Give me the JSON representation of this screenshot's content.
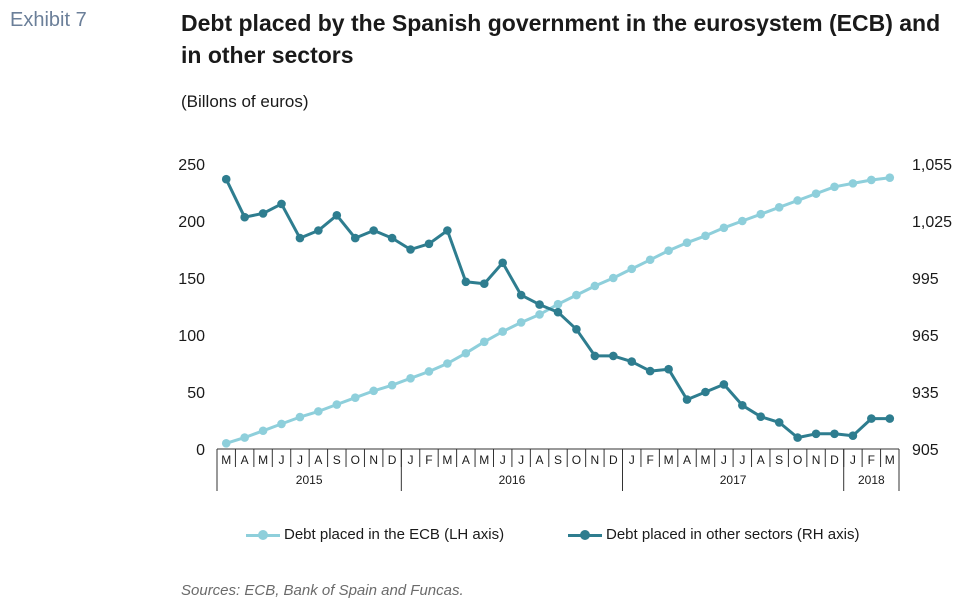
{
  "header": {
    "exhibit": "Exhibit 7",
    "title": "Debt placed by the Spanish government in the eurosystem (ECB) and in other sectors",
    "subtitle": "(Billons of euros)"
  },
  "source": "Sources: ECB, Bank of Spain and Funcas.",
  "chart_data": {
    "type": "line",
    "x": [
      "M",
      "A",
      "M",
      "J",
      "J",
      "A",
      "S",
      "O",
      "N",
      "D",
      "J",
      "F",
      "M",
      "A",
      "M",
      "J",
      "J",
      "A",
      "S",
      "O",
      "N",
      "D",
      "J",
      "F",
      "M",
      "A",
      "M",
      "J",
      "J",
      "A",
      "S",
      "O",
      "N",
      "D",
      "J",
      "F",
      "M"
    ],
    "year_groups": [
      {
        "label": "2015",
        "count": 10
      },
      {
        "label": "2016",
        "count": 12
      },
      {
        "label": "2017",
        "count": 12
      },
      {
        "label": "2018",
        "count": 3
      }
    ],
    "y_left": {
      "ticks": [
        "0",
        "50",
        "100",
        "150",
        "200",
        "250"
      ],
      "lim": [
        0,
        250
      ]
    },
    "y_right": {
      "ticks": [
        "905",
        "935",
        "965",
        "995",
        "1,025",
        "1,055"
      ],
      "lim": [
        905,
        1055
      ]
    },
    "series": [
      {
        "name": "Debt placed in the ECB (LH axis)",
        "axis": "left",
        "color": "#8ecfdb",
        "values": [
          5,
          10,
          16,
          22,
          28,
          33,
          39,
          45,
          51,
          56,
          62,
          68,
          75,
          84,
          94,
          103,
          111,
          118,
          127,
          135,
          143,
          150,
          158,
          166,
          174,
          181,
          187,
          194,
          200,
          206,
          212,
          218,
          224,
          230,
          233,
          236,
          238
        ]
      },
      {
        "name": "Debt placed in other sectors (RH axis)",
        "axis": "right",
        "color": "#2e7d8f",
        "values": [
          1047,
          1027,
          1029,
          1034,
          1016,
          1020,
          1028,
          1016,
          1020,
          1016,
          1010,
          1013,
          1020,
          993,
          992,
          1003,
          986,
          981,
          977,
          968,
          954,
          954,
          951,
          946,
          947,
          931,
          935,
          939,
          928,
          922,
          919,
          911,
          913,
          913,
          912,
          921,
          921
        ]
      }
    ]
  }
}
